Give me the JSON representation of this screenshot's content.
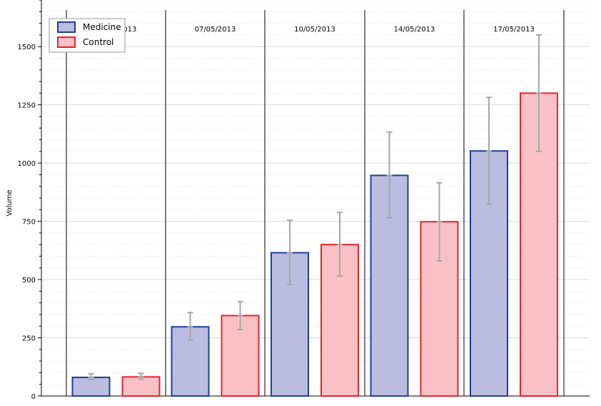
{
  "chart_data": {
    "type": "bar",
    "categories": [
      "03/05/2013",
      "07/05/2013",
      "10/05/2013",
      "14/05/2013",
      "17/05/2013"
    ],
    "series": [
      {
        "name": "Medicine",
        "values": [
          80,
          297,
          615,
          947,
          1052
        ],
        "error_low": [
          70,
          240,
          478,
          765,
          822
        ],
        "error_high": [
          95,
          358,
          755,
          1133,
          1282
        ],
        "fill": "#babddf",
        "stroke": "#1f3f9a"
      },
      {
        "name": "Control",
        "values": [
          82,
          345,
          650,
          748,
          1300
        ],
        "error_low": [
          72,
          285,
          515,
          580,
          1050
        ],
        "error_high": [
          97,
          405,
          788,
          915,
          1550
        ],
        "fill": "#f9c1c6",
        "stroke": "#e8232d"
      }
    ],
    "title": "",
    "xlabel": "",
    "ylabel": "Volume",
    "ylim": [
      0,
      1700
    ],
    "yticks": [
      0,
      250,
      500,
      750,
      1000,
      1250,
      1500
    ],
    "grid": true,
    "legend_position": "top-left",
    "error_bar_color": "#a6a6a6"
  }
}
